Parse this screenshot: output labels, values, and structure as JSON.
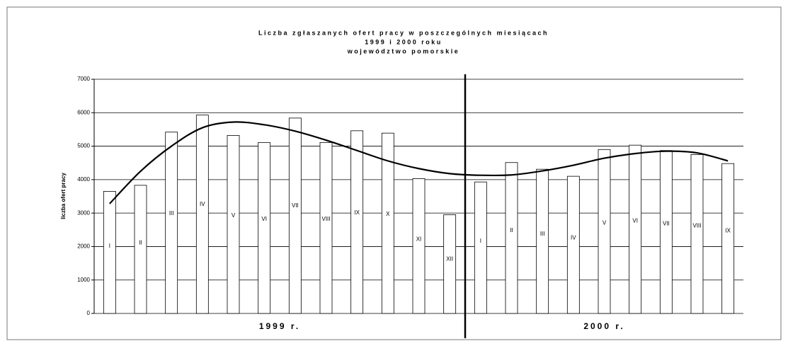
{
  "chart_data": {
    "type": "bar",
    "title": [
      "Liczba zgłaszanych ofert pracy w poszczególnych miesiącach",
      "1999 i 2000 roku",
      "województwo pomorskie"
    ],
    "y_axis_label": "liczba ofert pracy",
    "groups": [
      {
        "label": "1999 r.",
        "categories": [
          "I",
          "II",
          "III",
          "IV",
          "V",
          "VI",
          "VII",
          "VIII",
          "IX",
          "X",
          "XI",
          "XII"
        ],
        "values": [
          3650,
          3830,
          5420,
          5930,
          5320,
          5110,
          5840,
          5110,
          5460,
          5390,
          4030,
          2950
        ],
        "trend": [
          3280,
          4250,
          5000,
          5550,
          5720,
          5640,
          5450,
          5180,
          4870,
          4560,
          4330,
          4180
        ]
      },
      {
        "label": "2000 r.",
        "categories": [
          "I",
          "II",
          "III",
          "IV",
          "V",
          "VI",
          "VII",
          "VIII",
          "IX"
        ],
        "values": [
          3930,
          4510,
          4310,
          4100,
          4900,
          5030,
          4870,
          4750,
          4480
        ],
        "trend": [
          4130,
          4140,
          4260,
          4430,
          4640,
          4780,
          4850,
          4800,
          4560
        ]
      }
    ],
    "color": "#ffffff",
    "trend_color": "#000000",
    "ylim": [
      0,
      7000
    ],
    "yticks": [
      0,
      1000,
      2000,
      3000,
      4000,
      5000,
      6000,
      7000
    ],
    "grid": true
  }
}
